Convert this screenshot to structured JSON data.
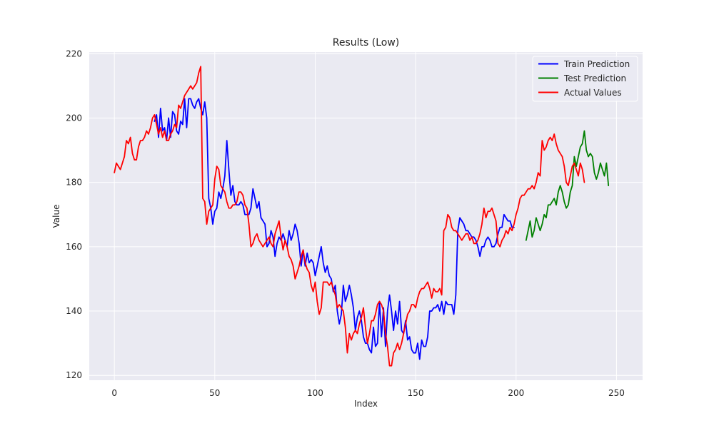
{
  "chart_data": {
    "type": "line",
    "title": "Results (Low)",
    "xlabel": "Index",
    "ylabel": "Value",
    "xlim": [
      -12.5,
      263
    ],
    "ylim": [
      118.5,
      220.5
    ],
    "xticks": [
      0,
      50,
      100,
      150,
      200,
      250
    ],
    "yticks": [
      120,
      140,
      160,
      180,
      200,
      220
    ],
    "grid": true,
    "legend_position": "top-right",
    "colors": {
      "axes_bg": "#eaeaf2",
      "grid": "#ffffff",
      "train": "#0000ff",
      "test": "#008000",
      "actual": "#ff0000"
    },
    "series": [
      {
        "name": "Train Prediction",
        "color": "#0000ff",
        "x_start": 20,
        "values": [
          199,
          201,
          194,
          203,
          196,
          197,
          193,
          200,
          194,
          202,
          201,
          196,
          195,
          199,
          198,
          206,
          197,
          206,
          206,
          204,
          203,
          205,
          206,
          203,
          201,
          205,
          200,
          175,
          172,
          167,
          171,
          172,
          177,
          175,
          178,
          182,
          193,
          184,
          176,
          179,
          174,
          173,
          173,
          174,
          173,
          170,
          170,
          170,
          172,
          178,
          175,
          172,
          174,
          169,
          168,
          167,
          160,
          161,
          165,
          163,
          157,
          161,
          163,
          162,
          164,
          162,
          160,
          165,
          162,
          164,
          167,
          165,
          161,
          154,
          159,
          154,
          158,
          155,
          156,
          155,
          151,
          154,
          157,
          160,
          155,
          152,
          154,
          151,
          150,
          146,
          148,
          140,
          136,
          139,
          148,
          143,
          145,
          148,
          145,
          141,
          134,
          138,
          140,
          137,
          132,
          130,
          130,
          128,
          127,
          135,
          129,
          130,
          143,
          132,
          141,
          129,
          140,
          145,
          140,
          134,
          140,
          136,
          143,
          134,
          133,
          137,
          131,
          132,
          128,
          127,
          127,
          130,
          125,
          131,
          129,
          129,
          132,
          140,
          140,
          141,
          141,
          142,
          140,
          143,
          139,
          143,
          142,
          142,
          142,
          139,
          145,
          165,
          169,
          168,
          167,
          165,
          165,
          164,
          163,
          163,
          162,
          160,
          157,
          160,
          160,
          162,
          163,
          162,
          160,
          160,
          161,
          164,
          166,
          166,
          170,
          169,
          168,
          168,
          166,
          166
        ]
      },
      {
        "name": "Test Prediction",
        "color": "#008000",
        "x_start": 205,
        "values": [
          162,
          165,
          168,
          163,
          165,
          169,
          167,
          165,
          167,
          170,
          169,
          173,
          173,
          174,
          175,
          173,
          177,
          179,
          177,
          174,
          172,
          173,
          177,
          179,
          188,
          185,
          188,
          191,
          192,
          196,
          190,
          188,
          189,
          188,
          183,
          181,
          183,
          186,
          184,
          182,
          186,
          179
        ]
      },
      {
        "name": "Actual Values",
        "color": "#ff0000",
        "x_start": 0,
        "values": [
          183,
          186,
          185,
          184,
          186,
          188,
          193,
          192,
          194,
          189,
          187,
          187,
          191,
          193,
          193,
          194,
          196,
          195,
          197,
          200,
          201,
          198,
          195,
          197,
          194,
          196,
          193,
          193,
          195,
          196,
          198,
          197,
          204,
          203,
          205,
          207,
          208,
          209,
          210,
          209,
          210,
          211,
          214,
          216,
          175,
          174,
          167,
          171,
          172,
          173,
          181,
          185,
          184,
          179,
          178,
          177,
          174,
          172,
          172,
          173,
          173,
          174,
          177,
          177,
          176,
          173,
          172,
          167,
          160,
          161,
          163,
          164,
          162,
          161,
          160,
          161,
          162,
          163,
          161,
          160,
          164,
          166,
          168,
          163,
          159,
          162,
          160,
          157,
          156,
          154,
          150,
          152,
          154,
          157,
          159,
          155,
          153,
          152,
          148,
          146,
          149,
          143,
          139,
          141,
          149,
          149,
          149,
          148,
          149,
          147,
          145,
          141,
          142,
          141,
          140,
          135,
          127,
          133,
          131,
          133,
          134,
          133,
          136,
          138,
          141,
          135,
          130,
          133,
          137,
          137,
          139,
          142,
          143,
          142,
          140,
          133,
          129,
          123,
          123,
          127,
          128,
          130,
          128,
          130,
          133,
          136,
          139,
          140,
          142,
          142,
          141,
          144,
          146,
          147,
          147,
          148,
          149,
          147,
          144,
          147,
          146,
          146,
          147,
          145,
          165,
          166,
          170,
          169,
          166,
          165,
          165,
          164,
          163,
          162,
          163,
          164,
          164,
          162,
          163,
          161,
          161,
          162,
          164,
          167,
          172,
          169,
          171,
          171,
          172,
          170,
          168,
          161,
          160,
          162,
          163,
          165,
          164,
          166,
          165,
          167,
          170,
          172,
          175,
          176,
          176,
          177,
          178,
          178,
          179,
          178,
          180,
          183,
          182,
          193,
          190,
          191,
          193,
          194,
          193,
          195,
          192,
          190,
          189,
          188,
          185,
          180,
          179,
          182,
          185,
          186,
          184,
          182,
          186,
          184,
          180
        ]
      }
    ]
  }
}
